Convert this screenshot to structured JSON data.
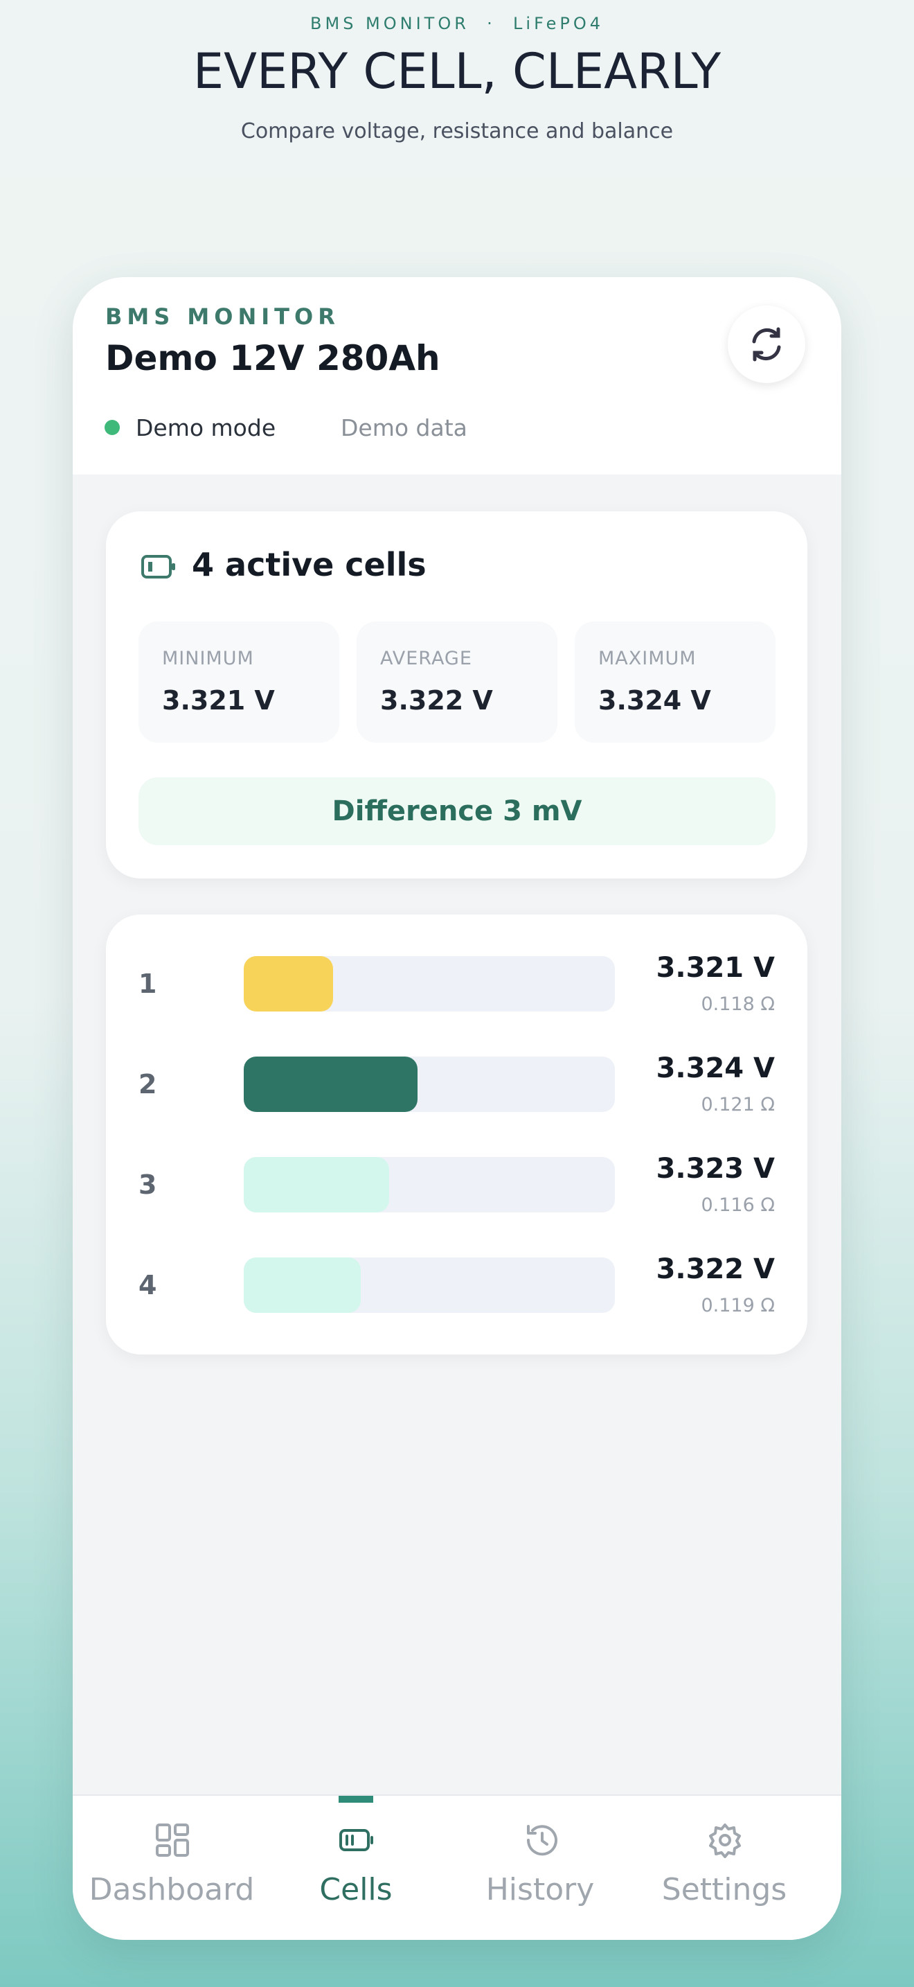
{
  "header": {
    "eyebrow": "BMS MONITOR  ·  LiFePO4",
    "title": "EVERY CELL, CLEARLY",
    "subtitle": "Compare voltage, resistance and balance"
  },
  "app": {
    "brand": "BMS MONITOR",
    "device": "Demo 12V 280Ah",
    "status": "Demo mode",
    "source": "Demo data"
  },
  "summary": {
    "title": "4 active cells",
    "stats": [
      {
        "label": "MINIMUM",
        "value": "3.321 V"
      },
      {
        "label": "AVERAGE",
        "value": "3.322 V"
      },
      {
        "label": "MAXIMUM",
        "value": "3.324 V"
      }
    ],
    "difference": "Difference 3 mV"
  },
  "cells": [
    {
      "index": "1",
      "voltage": "3.321 V",
      "resistance": "0.118 Ω",
      "color": "#f8d35a"
    },
    {
      "index": "2",
      "voltage": "3.324 V",
      "resistance": "0.121 Ω",
      "color": "#2f7565"
    },
    {
      "index": "3",
      "voltage": "3.323 V",
      "resistance": "0.116 Ω",
      "color": "#d3f7ec"
    },
    {
      "index": "4",
      "voltage": "3.322 V",
      "resistance": "0.119 Ω",
      "color": "#d3f7ec"
    }
  ],
  "nav": {
    "items": [
      "Dashboard",
      "Cells",
      "History",
      "Settings"
    ],
    "active": 1
  }
}
